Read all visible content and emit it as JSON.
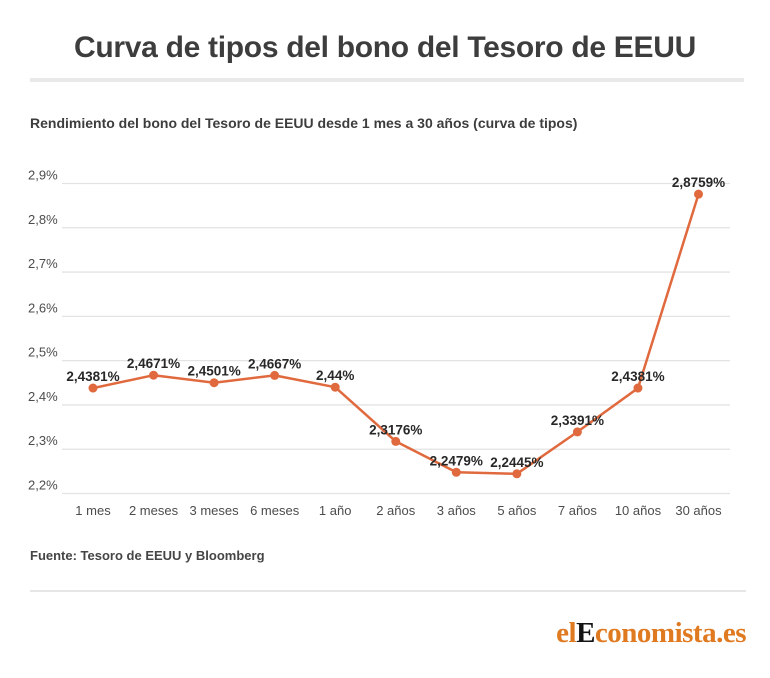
{
  "header": {
    "title": "Curva de tipos del bono del Tesoro de EEUU"
  },
  "chart_data": {
    "type": "line",
    "title": "Rendimiento del bono del Tesoro de EEUU desde 1 mes a 30 años (curva de tipos)",
    "categories": [
      "1 mes",
      "2 meses",
      "3 meses",
      "6 meses",
      "1 año",
      "2 años",
      "3 años",
      "5 años",
      "7 años",
      "10 años",
      "30 años"
    ],
    "values": [
      2.4381,
      2.4671,
      2.4501,
      2.4667,
      2.44,
      2.3176,
      2.2479,
      2.2445,
      2.3391,
      2.4381,
      2.8759
    ],
    "point_labels": [
      "2,4381%",
      "2,4671%",
      "2,4501%",
      "2,4667%",
      "2,44%",
      "2,3176%",
      "2,2479%",
      "2,2445%",
      "2,3391%",
      "2,4381%",
      "2,8759%"
    ],
    "xlabel": "",
    "ylabel": "",
    "ylim": [
      2.2,
      2.9
    ],
    "ytick_step": 0.1,
    "ytick_labels": [
      "2,2%",
      "2,3%",
      "2,4%",
      "2,5%",
      "2,6%",
      "2,7%",
      "2,8%",
      "2,9%"
    ],
    "grid": true,
    "legend": "none",
    "colors": {
      "line": "#e0693e",
      "marker": "#e0693e",
      "point_label": "#282828",
      "axis_label": "#4c4c4c",
      "gridline": "#e3e3e3"
    }
  },
  "footer": {
    "source": "Fuente: Tesoro de EEUU y Bloomberg",
    "logo": {
      "part1": "el",
      "part2": "E",
      "part3": "conomista.es",
      "orange": "#e07a21",
      "black": "#141414"
    }
  }
}
